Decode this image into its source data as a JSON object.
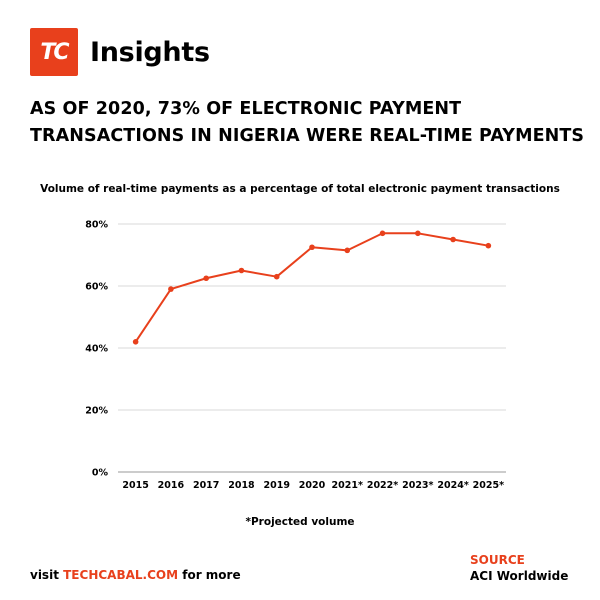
{
  "brand": {
    "logo_text": "TC",
    "name": "Insights",
    "accent_color": "#e8401c"
  },
  "headline": "AS OF 2020, 73% OF ELECTRONIC PAYMENT TRANSACTIONS IN NIGERIA WERE REAL-TIME PAYMENTS",
  "chart_data": {
    "type": "line",
    "title": "Volume of real-time payments as a percentage of total electronic payment transactions",
    "categories": [
      "2015",
      "2016",
      "2017",
      "2018",
      "2019",
      "2020",
      "2021*",
      "2022*",
      "2023*",
      "2024*",
      "2025*"
    ],
    "series": [
      {
        "values": [
          42,
          59,
          62.5,
          65,
          63,
          72.5,
          71.5,
          77,
          77,
          75,
          73
        ],
        "color": "#e8401c"
      }
    ],
    "ylim": [
      0,
      80
    ],
    "yticks": [
      0,
      20,
      40,
      60,
      80
    ],
    "ytick_labels": [
      "0%",
      "20%",
      "40%",
      "60%",
      "80%"
    ],
    "y_unit": "%",
    "grid": true,
    "note": "*Projected volume"
  },
  "footer": {
    "visit_prefix": "visit",
    "visit_link": "TECHCABAL.COM",
    "visit_suffix": "for more",
    "source_label": "SOURCE",
    "source_value": "ACI Worldwide"
  }
}
